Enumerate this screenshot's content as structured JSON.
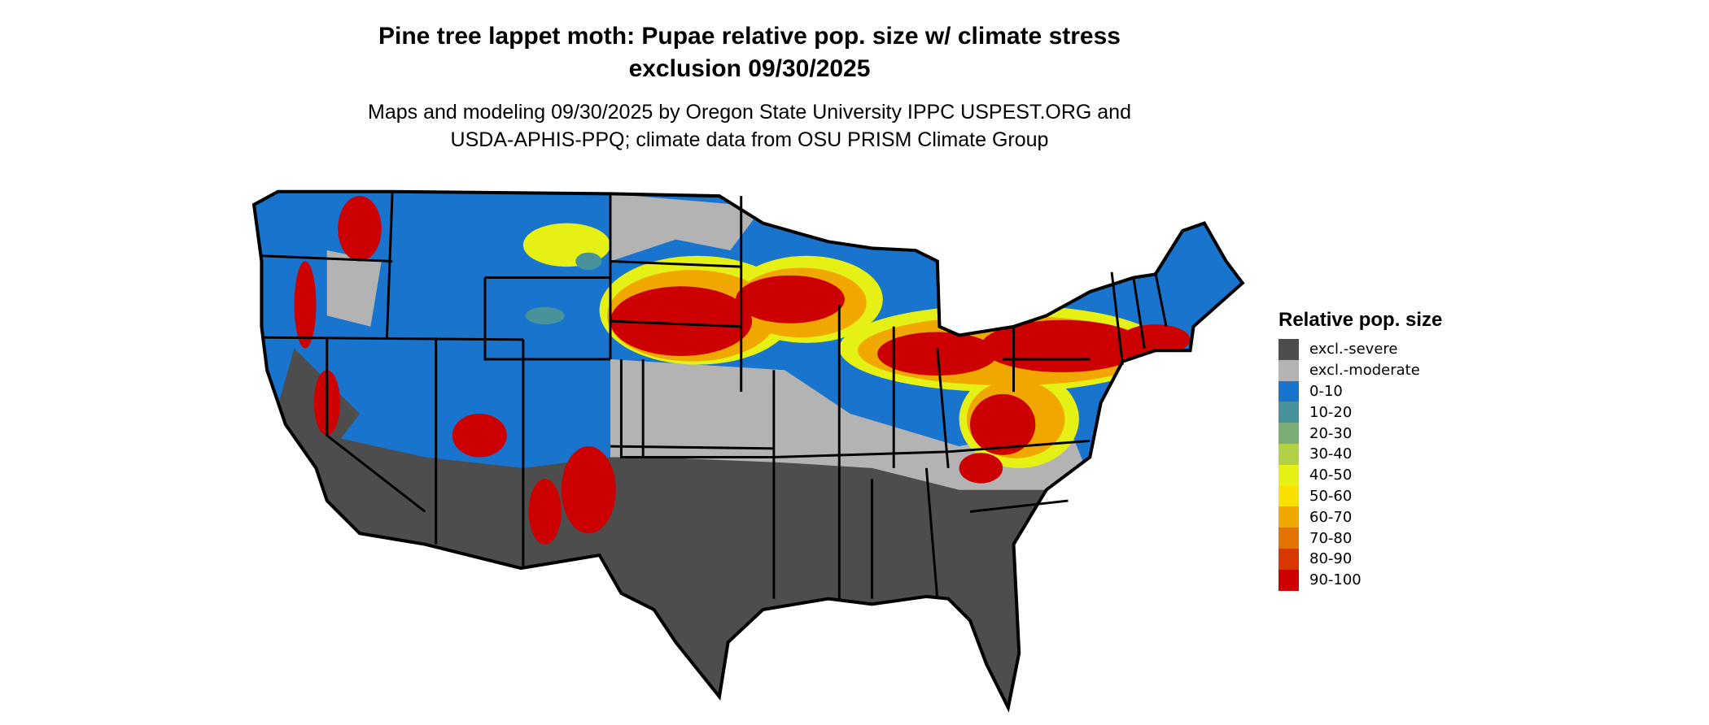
{
  "title_line1": "Pine tree lappet moth: Pupae relative pop. size w/ climate stress",
  "title_line2": "exclusion 09/30/2025",
  "subtitle_line1": "Maps and modeling 09/30/2025 by Oregon State University IPPC USPEST.ORG and",
  "subtitle_line2": "USDA-APHIS-PPQ; climate data from OSU PRISM Climate Group",
  "legend": {
    "title": "Relative pop. size",
    "items": [
      {
        "label": "excl.-severe",
        "color": "#4d4d4d"
      },
      {
        "label": "excl.-moderate",
        "color": "#b3b3b3"
      },
      {
        "label": "0-10",
        "color": "#1874cd"
      },
      {
        "label": "10-20",
        "color": "#48929b"
      },
      {
        "label": "20-30",
        "color": "#7bae74"
      },
      {
        "label": "30-40",
        "color": "#b2d147"
      },
      {
        "label": "40-50",
        "color": "#e5f015"
      },
      {
        "label": "50-60",
        "color": "#f8e000"
      },
      {
        "label": "60-70",
        "color": "#f0a800"
      },
      {
        "label": "70-80",
        "color": "#e47200"
      },
      {
        "label": "80-90",
        "color": "#da3700"
      },
      {
        "label": "90-100",
        "color": "#cc0000"
      }
    ]
  }
}
